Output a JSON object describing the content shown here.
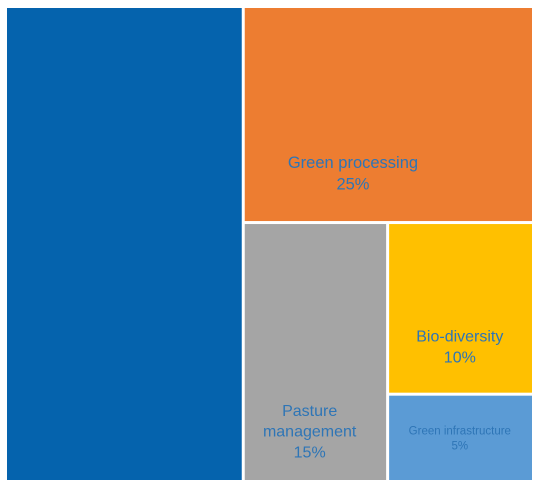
{
  "chart_data": {
    "type": "treemap",
    "title": "",
    "colors": {
      "label_text": "#2e75b6",
      "border": "#ffffff"
    },
    "items": [
      {
        "label": "",
        "value": 45,
        "value_label": "",
        "color": "#0563ad"
      },
      {
        "label": "Green processing",
        "value": 25,
        "value_label": "25%",
        "color": "#ed7d31"
      },
      {
        "label": "Pasture management",
        "value": 15,
        "value_label": "15%",
        "color": "#a5a5a5"
      },
      {
        "label": "Bio-diversity",
        "value": 10,
        "value_label": "10%",
        "color": "#ffc000"
      },
      {
        "label": "Green infrastructure",
        "value": 5,
        "value_label": "5%",
        "color": "#5b9bd5"
      }
    ]
  }
}
